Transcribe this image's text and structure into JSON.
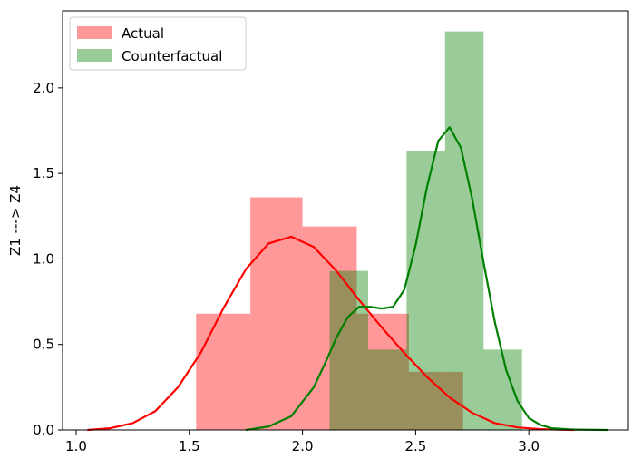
{
  "chart_data": {
    "type": "bar",
    "title": "",
    "xlabel": "",
    "ylabel": "Z1 ---> Z4",
    "xlim": [
      0.94,
      3.44
    ],
    "ylim": [
      0,
      2.45
    ],
    "x_ticks": [
      "1.0",
      "1.5",
      "2.0",
      "2.5",
      "3.0"
    ],
    "y_ticks": [
      "0.0",
      "0.5",
      "1.0",
      "1.5",
      "2.0"
    ],
    "grid": false,
    "legend_position": "top-left",
    "series": [
      {
        "name": "Actual",
        "color": "#ff9999",
        "curve_color": "#ff0000",
        "bins": [
          {
            "x0": 1.53,
            "x1": 1.77,
            "y": 0.68
          },
          {
            "x0": 1.77,
            "x1": 2.0,
            "y": 1.36
          },
          {
            "x0": 2.0,
            "x1": 2.24,
            "y": 1.19
          },
          {
            "x0": 2.24,
            "x1": 2.47,
            "y": 0.68
          },
          {
            "x0": 2.47,
            "x1": 2.71,
            "y": 0.34
          }
        ],
        "kde": {
          "x": [
            1.05,
            1.15,
            1.25,
            1.35,
            1.45,
            1.55,
            1.65,
            1.75,
            1.85,
            1.95,
            2.05,
            2.15,
            2.25,
            2.35,
            2.45,
            2.55,
            2.65,
            2.75,
            2.85,
            2.95,
            3.05,
            3.15,
            3.2
          ],
          "y": [
            0.0,
            0.01,
            0.04,
            0.11,
            0.25,
            0.45,
            0.71,
            0.94,
            1.09,
            1.13,
            1.07,
            0.93,
            0.76,
            0.6,
            0.45,
            0.31,
            0.19,
            0.1,
            0.04,
            0.015,
            0.005,
            0.001,
            0.0
          ]
        }
      },
      {
        "name": "Counterfactual",
        "color": "#88c488",
        "curve_color": "#008000",
        "bins": [
          {
            "x0": 2.12,
            "x1": 2.29,
            "y": 0.93
          },
          {
            "x0": 2.29,
            "x1": 2.46,
            "y": 0.47
          },
          {
            "x0": 2.46,
            "x1": 2.63,
            "y": 1.63
          },
          {
            "x0": 2.63,
            "x1": 2.8,
            "y": 2.33
          },
          {
            "x0": 2.8,
            "x1": 2.97,
            "y": 0.47
          }
        ],
        "kde": {
          "x": [
            1.75,
            1.85,
            1.95,
            2.05,
            2.1,
            2.15,
            2.2,
            2.25,
            2.3,
            2.35,
            2.4,
            2.45,
            2.5,
            2.55,
            2.6,
            2.65,
            2.7,
            2.75,
            2.8,
            2.85,
            2.9,
            2.95,
            3.0,
            3.05,
            3.1,
            3.2,
            3.35
          ],
          "y": [
            0.0,
            0.02,
            0.08,
            0.25,
            0.39,
            0.54,
            0.66,
            0.72,
            0.72,
            0.71,
            0.72,
            0.82,
            1.08,
            1.42,
            1.69,
            1.77,
            1.65,
            1.35,
            0.98,
            0.63,
            0.35,
            0.17,
            0.07,
            0.03,
            0.01,
            0.002,
            0.0
          ]
        }
      }
    ]
  }
}
